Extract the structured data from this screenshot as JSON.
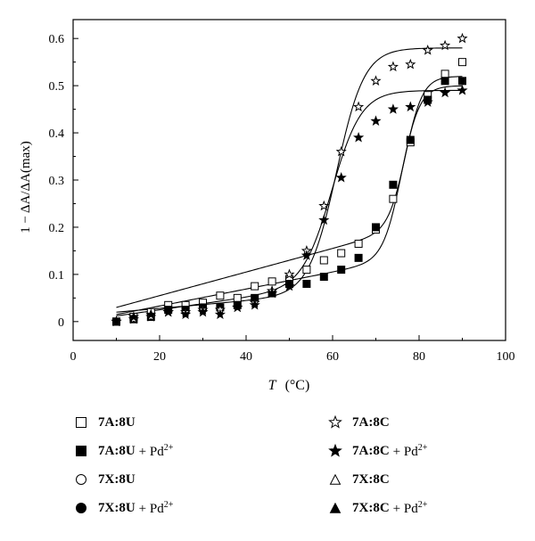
{
  "chart_data": {
    "type": "scatter",
    "xlabel_var": "T",
    "xlabel_unit": "(°C)",
    "ylabel": "1 − ΔA/ΔA(max)",
    "xlim": [
      0,
      100
    ],
    "ylim": [
      -0.04,
      0.64
    ],
    "xticks": [
      0,
      20,
      40,
      60,
      80,
      100
    ],
    "yticks": [
      0,
      0.1,
      0.2,
      0.3,
      0.4,
      0.5,
      0.6
    ],
    "grid": false,
    "legend_position": "bottom",
    "series": [
      {
        "name": "7A:8U",
        "suffix": "",
        "marker": "square-open",
        "x": [
          10,
          14,
          18,
          22,
          26,
          30,
          34,
          38,
          42,
          46,
          50,
          54,
          58,
          62,
          66,
          70,
          74,
          78,
          82,
          86,
          90
        ],
        "y": [
          0.0,
          0.01,
          0.02,
          0.035,
          0.035,
          0.04,
          0.055,
          0.05,
          0.075,
          0.085,
          0.09,
          0.11,
          0.13,
          0.145,
          0.165,
          0.195,
          0.26,
          0.38,
          0.48,
          0.525,
          0.55
        ]
      },
      {
        "name": "7A:8U",
        "suffix": "+ Pd",
        "sup": "2+",
        "marker": "square-filled",
        "x": [
          10,
          14,
          18,
          22,
          26,
          30,
          34,
          38,
          42,
          46,
          50,
          54,
          58,
          62,
          66,
          70,
          74,
          78,
          82,
          86,
          90
        ],
        "y": [
          0.0,
          0.005,
          0.01,
          0.025,
          0.025,
          0.03,
          0.03,
          0.035,
          0.05,
          0.06,
          0.08,
          0.08,
          0.095,
          0.11,
          0.135,
          0.2,
          0.29,
          0.385,
          0.47,
          0.51,
          0.51
        ]
      },
      {
        "name": "7X:8U",
        "suffix": "",
        "marker": "circle-open",
        "x": [],
        "y": []
      },
      {
        "name": "7X:8U",
        "suffix": "+ Pd",
        "sup": "2+",
        "marker": "circle-filled",
        "x": [],
        "y": []
      },
      {
        "name": "7A:8C",
        "suffix": "",
        "marker": "star-open",
        "x": [
          10,
          14,
          18,
          22,
          26,
          30,
          34,
          38,
          42,
          46,
          50,
          54,
          58,
          62,
          66,
          70,
          74,
          78,
          82,
          86,
          90
        ],
        "y": [
          0.0,
          0.005,
          0.01,
          0.02,
          0.02,
          0.025,
          0.025,
          0.03,
          0.04,
          0.065,
          0.1,
          0.15,
          0.245,
          0.36,
          0.455,
          0.51,
          0.54,
          0.545,
          0.575,
          0.585,
          0.6
        ]
      },
      {
        "name": "7A:8C",
        "suffix": "+ Pd",
        "sup": "2+",
        "marker": "star-filled",
        "x": [
          10,
          14,
          18,
          22,
          26,
          30,
          34,
          38,
          42,
          46,
          50,
          54,
          58,
          62,
          66,
          70,
          74,
          78,
          82,
          86,
          90
        ],
        "y": [
          0.0,
          0.01,
          0.015,
          0.02,
          0.015,
          0.02,
          0.015,
          0.03,
          0.035,
          0.06,
          0.075,
          0.14,
          0.215,
          0.305,
          0.39,
          0.425,
          0.45,
          0.455,
          0.465,
          0.485,
          0.49
        ]
      },
      {
        "name": "7X:8C",
        "suffix": "",
        "marker": "triangle-open",
        "x": [],
        "y": []
      },
      {
        "name": "7X:8C",
        "suffix": "+ Pd",
        "sup": "2+",
        "marker": "triangle-filled",
        "x": [],
        "y": []
      }
    ],
    "fits": [
      {
        "base": 0.02,
        "slope": 0.0008,
        "top": 0.58,
        "tm": 61,
        "w": 3.2
      },
      {
        "base": 0.012,
        "slope": 0.0013,
        "top": 0.49,
        "tm": 60,
        "w": 3.4
      },
      {
        "base": 0.03,
        "slope": 0.0025,
        "top": 0.52,
        "tm": 77,
        "w": 2.0
      },
      {
        "base": 0.015,
        "slope": 0.0018,
        "top": 0.5,
        "tm": 76,
        "w": 2.1
      }
    ]
  }
}
